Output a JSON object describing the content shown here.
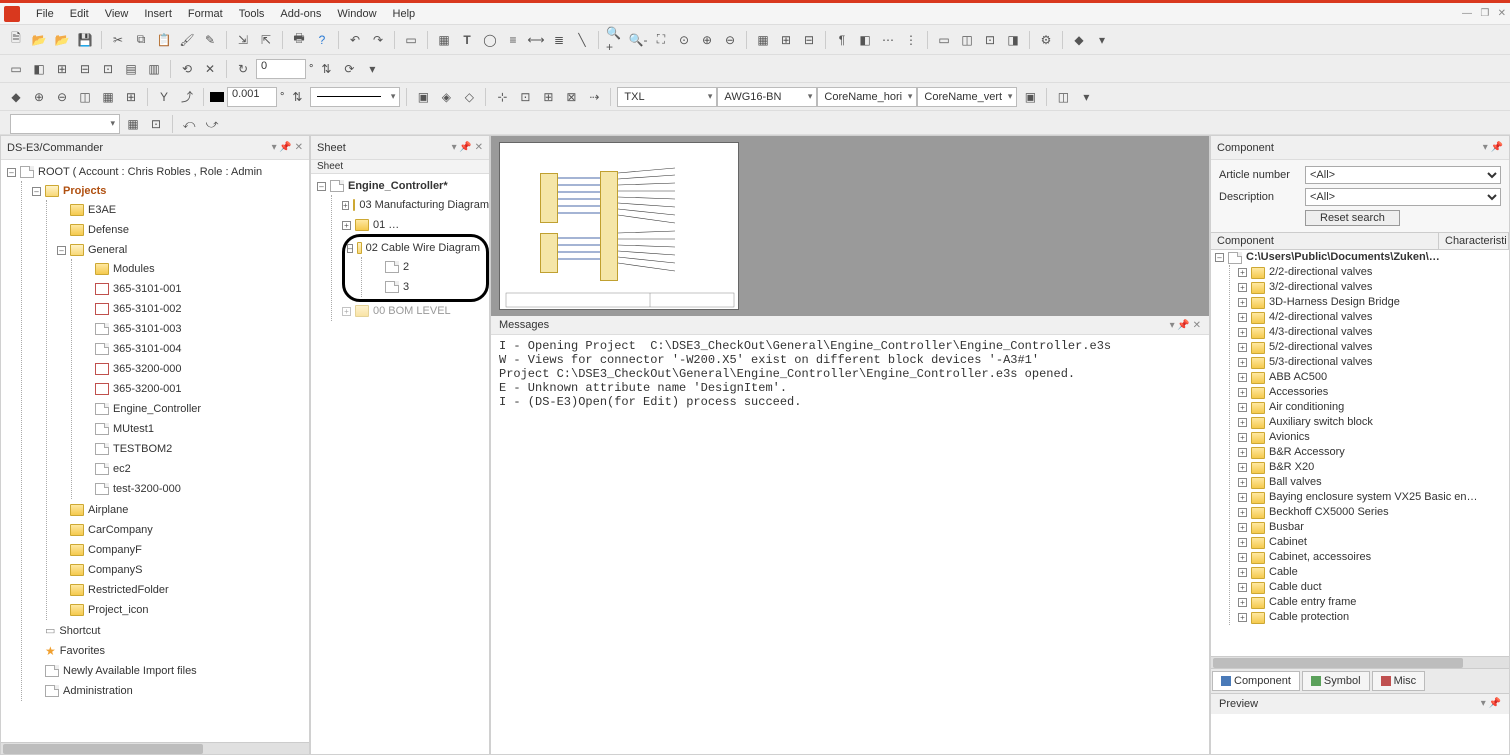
{
  "menu": {
    "items": [
      "File",
      "Edit",
      "View",
      "Insert",
      "Format",
      "Tools",
      "Add-ons",
      "Window",
      "Help"
    ]
  },
  "toolbar2": {
    "angle": "0",
    "angle_unit": "°"
  },
  "toolbar3": {
    "step": "0.001",
    "step_unit": "°",
    "combos": [
      "TXL",
      "AWG16-BN",
      "CoreName_hori",
      "CoreName_vert"
    ]
  },
  "commander": {
    "title": "DS-E3/Commander",
    "root": "ROOT ( Account : Chris Robles , Role : Admin",
    "projects_label": "Projects",
    "top_folders": [
      "E3AE",
      "Defense"
    ],
    "general_label": "General",
    "modules_label": "Modules",
    "modules": [
      {
        "name": "365-3101-001",
        "red": true
      },
      {
        "name": "365-3101-002",
        "red": true
      },
      {
        "name": "365-3101-003",
        "red": false
      },
      {
        "name": "365-3101-004",
        "red": false
      },
      {
        "name": "365-3200-000",
        "red": true
      },
      {
        "name": "365-3200-001",
        "red": true
      },
      {
        "name": "Engine_Controller",
        "red": false,
        "spec": true
      },
      {
        "name": "MUtest1",
        "red": false
      },
      {
        "name": "TESTBOM2",
        "red": false
      },
      {
        "name": "ec2",
        "red": false
      },
      {
        "name": "test-3200-000",
        "red": false
      }
    ],
    "other_folders": [
      "Airplane",
      "CarCompany",
      "CompanyF",
      "CompanyS",
      "RestrictedFolder",
      "Project_icon"
    ],
    "extras": [
      {
        "label": "Shortcut",
        "icon": "cut"
      },
      {
        "label": "Favorites",
        "icon": "star"
      },
      {
        "label": "Newly Available Import files",
        "icon": "doc"
      },
      {
        "label": "Administration",
        "icon": "gear"
      }
    ]
  },
  "sheet": {
    "title": "Sheet",
    "col": "Sheet",
    "root": "Engine_Controller*",
    "items": [
      {
        "label": "03 Manufacturing Diagram"
      },
      {
        "label": "01 …"
      },
      {
        "label": "02 Cable Wire Diagram",
        "children": [
          "2",
          "3"
        ],
        "hl": true
      },
      {
        "label": "00 BOM LEVEL",
        "dim": true
      }
    ]
  },
  "messages": {
    "title": "Messages",
    "lines": [
      "I - Opening Project  C:\\DSE3_CheckOut\\General\\Engine_Controller\\Engine_Controller.e3s",
      "W - Views for connector '-W200.X5' exist on different block devices '-A3#1'",
      "Project C:\\DSE3_CheckOut\\General\\Engine_Controller\\Engine_Controller.e3s opened.",
      "E - Unknown attribute name 'DesignItem'.",
      "I - (DS-E3)Open(for Edit) process succeed."
    ]
  },
  "component": {
    "title": "Component",
    "article_label": "Article number",
    "desc_label": "Description",
    "all": "<All>",
    "reset": "Reset search",
    "cols": [
      "Component",
      "Characteristi"
    ],
    "root": "C:\\Users\\Public\\Documents\\Zuken\\…",
    "folders": [
      "2/2-directional valves",
      "3/2-directional valves",
      "3D-Harness Design Bridge",
      "4/2-directional valves",
      "4/3-directional valves",
      "5/2-directional valves",
      "5/3-directional valves",
      "ABB AC500",
      "Accessories",
      "Air conditioning",
      "Auxiliary switch block",
      "Avionics",
      "B&R Accessory",
      "B&R X20",
      "Ball valves",
      "Baying enclosure system VX25 Basic en…",
      "Beckhoff CX5000 Series",
      "Busbar",
      "Cabinet",
      "Cabinet, accessoires",
      "Cable",
      "Cable duct",
      "Cable entry frame",
      "Cable protection"
    ],
    "tabs": [
      {
        "label": "Component",
        "color": "#4a7ab8",
        "active": true
      },
      {
        "label": "Symbol",
        "color": "#5aa05a"
      },
      {
        "label": "Misc",
        "color": "#c05050"
      }
    ]
  },
  "preview": {
    "title": "Preview"
  },
  "colors": {
    "accent": "#d9381e",
    "panel_title": "#3a5a7a",
    "folder": "#f5c94e",
    "block": "#f5e6a8",
    "canvas_bg": "#9a9a9a"
  }
}
